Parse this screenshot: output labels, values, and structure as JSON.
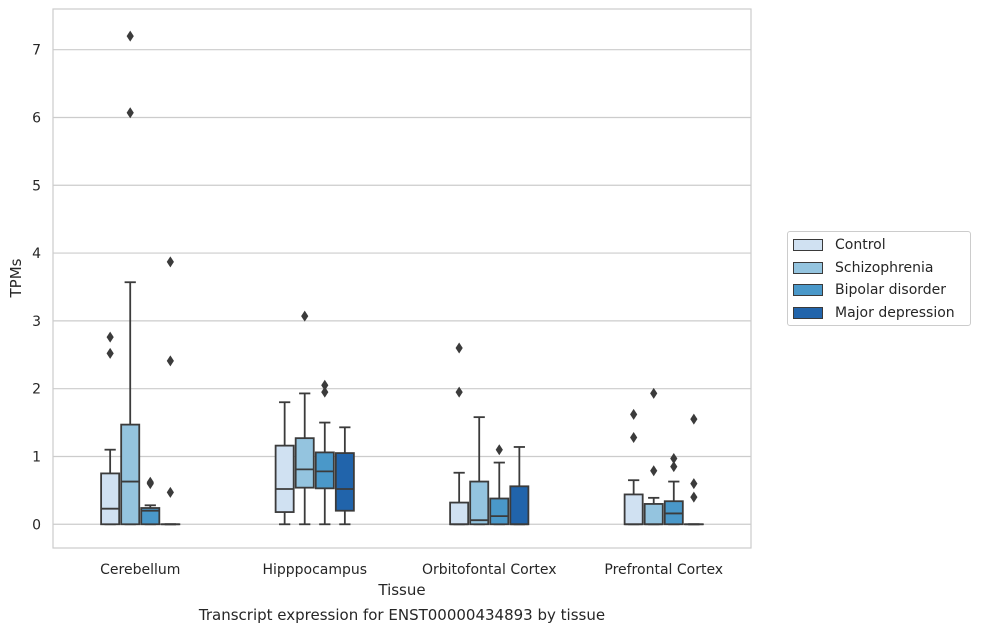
{
  "caption": "Transcript expression for ENST00000434893 by tissue",
  "chart_data": {
    "type": "box",
    "xlabel": "Tissue",
    "ylabel": "TPMs",
    "ylim": [
      -0.35,
      7.6
    ],
    "yticks": [
      0,
      1,
      2,
      3,
      4,
      5,
      6,
      7
    ],
    "grid": "horizontal",
    "legend_position": "right",
    "categories": [
      "Cerebellum",
      "Hipppocampus",
      "Orbitofontal Cortex",
      "Prefrontal Cortex"
    ],
    "series": [
      {
        "name": "Control",
        "color": "#d0e1f2",
        "boxes": [
          {
            "whislo": 0,
            "q1": 0,
            "med": 0.23,
            "q3": 0.75,
            "whishi": 1.1,
            "fliers": [
              2.52,
              2.76
            ]
          },
          {
            "whislo": 0,
            "q1": 0.18,
            "med": 0.52,
            "q3": 1.16,
            "whishi": 1.8,
            "fliers": []
          },
          {
            "whislo": 0,
            "q1": 0,
            "med": 0,
            "q3": 0.32,
            "whishi": 0.76,
            "fliers": [
              1.95,
              2.6
            ]
          },
          {
            "whislo": 0,
            "q1": 0,
            "med": 0,
            "q3": 0.44,
            "whishi": 0.65,
            "fliers": [
              1.28,
              1.62
            ]
          }
        ]
      },
      {
        "name": "Schizophrenia",
        "color": "#94c4df",
        "boxes": [
          {
            "whislo": 0,
            "q1": 0,
            "med": 0.63,
            "q3": 1.47,
            "whishi": 3.57,
            "fliers": [
              6.07,
              7.2
            ]
          },
          {
            "whislo": 0,
            "q1": 0.54,
            "med": 0.81,
            "q3": 1.27,
            "whishi": 1.93,
            "fliers": [
              3.07
            ]
          },
          {
            "whislo": 0,
            "q1": 0,
            "med": 0.06,
            "q3": 0.63,
            "whishi": 1.58,
            "fliers": []
          },
          {
            "whislo": 0,
            "q1": 0,
            "med": 0,
            "q3": 0.3,
            "whishi": 0.39,
            "fliers": [
              0.79,
              1.93
            ]
          }
        ]
      },
      {
        "name": "Bipolar disorder",
        "color": "#4a98c9",
        "boxes": [
          {
            "whislo": 0,
            "q1": 0,
            "med": 0.2,
            "q3": 0.24,
            "whishi": 0.28,
            "fliers": [
              0.6,
              0.62
            ]
          },
          {
            "whislo": 0,
            "q1": 0.53,
            "med": 0.78,
            "q3": 1.06,
            "whishi": 1.5,
            "fliers": [
              1.95,
              2.05
            ]
          },
          {
            "whislo": 0,
            "q1": 0,
            "med": 0.12,
            "q3": 0.38,
            "whishi": 0.91,
            "fliers": [
              1.1
            ]
          },
          {
            "whislo": 0,
            "q1": 0,
            "med": 0.16,
            "q3": 0.34,
            "whishi": 0.63,
            "fliers": [
              0.85,
              0.97
            ]
          }
        ]
      },
      {
        "name": "Major depression",
        "color": "#2164ab",
        "boxes": [
          {
            "whislo": 0,
            "q1": 0,
            "med": 0,
            "q3": 0,
            "whishi": 0,
            "fliers": [
              0.47,
              2.41,
              3.87
            ]
          },
          {
            "whislo": 0,
            "q1": 0.2,
            "med": 0.52,
            "q3": 1.05,
            "whishi": 1.43,
            "fliers": []
          },
          {
            "whislo": 0,
            "q1": 0,
            "med": 0,
            "q3": 0.56,
            "whishi": 1.14,
            "fliers": []
          },
          {
            "whislo": 0,
            "q1": 0,
            "med": 0,
            "q3": 0,
            "whishi": 0,
            "fliers": [
              0.4,
              0.6,
              1.55
            ]
          }
        ]
      }
    ]
  }
}
